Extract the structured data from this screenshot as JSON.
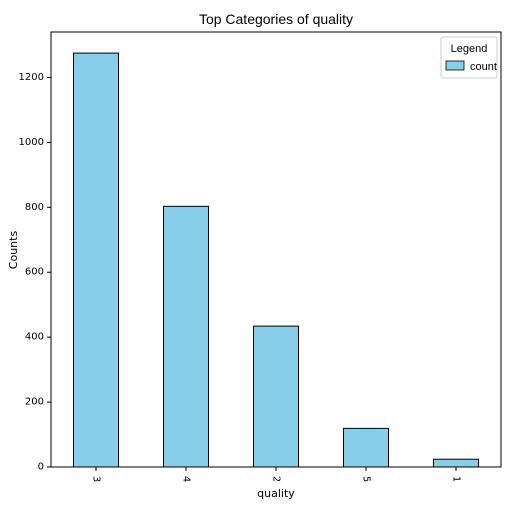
{
  "chart_data": {
    "type": "bar",
    "title": "Top Categories of quality",
    "xlabel": "quality",
    "ylabel": "Counts",
    "categories": [
      "3",
      "4",
      "2",
      "5",
      "1"
    ],
    "series": [
      {
        "name": "count",
        "values": [
          1275,
          803,
          434,
          119,
          24
        ]
      }
    ],
    "ylim": [
      0,
      1340
    ],
    "yticks": [
      "0",
      "200",
      "400",
      "600",
      "800",
      "1000",
      "1200"
    ],
    "legend": {
      "title": "Legend",
      "placement": "top-right"
    },
    "grid": false,
    "colors": {
      "bar_fill": "#87ceeb",
      "bar_edge": "#000000"
    }
  }
}
